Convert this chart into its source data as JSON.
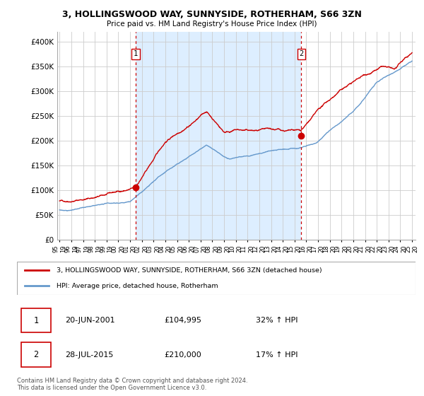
{
  "title": "3, HOLLINGSWOOD WAY, SUNNYSIDE, ROTHERHAM, S66 3ZN",
  "subtitle": "Price paid vs. HM Land Registry's House Price Index (HPI)",
  "legend_line1": "3, HOLLINGSWOOD WAY, SUNNYSIDE, ROTHERHAM, S66 3ZN (detached house)",
  "legend_line2": "HPI: Average price, detached house, Rotherham",
  "annotation1_date": "20-JUN-2001",
  "annotation1_price": "£104,995",
  "annotation1_hpi": "32% ↑ HPI",
  "annotation2_date": "28-JUL-2015",
  "annotation2_price": "£210,000",
  "annotation2_hpi": "17% ↑ HPI",
  "footer": "Contains HM Land Registry data © Crown copyright and database right 2024.\nThis data is licensed under the Open Government Licence v3.0.",
  "red_color": "#cc0000",
  "blue_color": "#6699cc",
  "shade_color": "#ddeeff",
  "grid_color": "#cccccc",
  "ylim": [
    0,
    420000
  ],
  "yticks": [
    0,
    50000,
    100000,
    150000,
    200000,
    250000,
    300000,
    350000,
    400000
  ],
  "year_start": 1995,
  "year_end": 2025,
  "sale1_year": 2001.47,
  "sale2_year": 2015.57,
  "sale1_price": 104995,
  "sale2_price": 210000
}
